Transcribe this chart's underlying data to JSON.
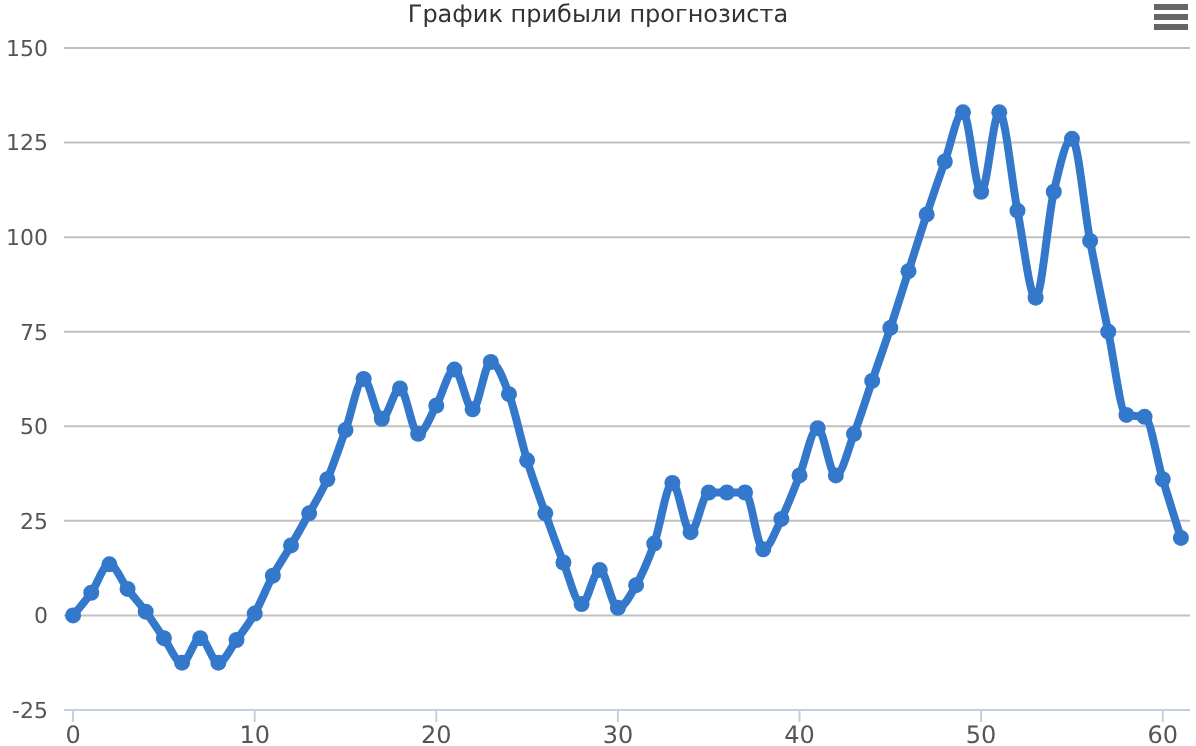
{
  "chart_data": {
    "type": "line",
    "title": "График прибыли прогнозиста",
    "x": [
      0,
      1,
      2,
      3,
      4,
      5,
      6,
      7,
      8,
      9,
      10,
      11,
      12,
      13,
      14,
      15,
      16,
      17,
      18,
      19,
      20,
      21,
      22,
      23,
      24,
      25,
      26,
      27,
      28,
      29,
      30,
      31,
      32,
      33,
      34,
      35,
      36,
      37,
      38,
      39,
      40,
      41,
      42,
      43,
      44,
      45,
      46,
      47,
      48,
      49,
      50,
      51,
      52,
      53,
      54,
      55,
      56,
      57,
      58,
      59,
      60,
      61
    ],
    "series": [
      {
        "color": "#3478cc",
        "values": [
          0,
          6,
          13.5,
          7,
          1,
          -6,
          -12.5,
          -6,
          -12.5,
          -6.5,
          0.5,
          10.5,
          18.5,
          27,
          36,
          49,
          62.5,
          52,
          60,
          48,
          55.5,
          65,
          54.5,
          67,
          58.5,
          41,
          27,
          14,
          3,
          12,
          2,
          8,
          19,
          35,
          22,
          32.5,
          32.5,
          32.5,
          17.5,
          25.5,
          37,
          49.5,
          37,
          48,
          62,
          76,
          91,
          106,
          120,
          133,
          112,
          133,
          107,
          84,
          112,
          126,
          99,
          75,
          53,
          52.5,
          36,
          20.5
        ]
      }
    ],
    "xlim": [
      -0.5,
      61.5
    ],
    "xticks": [
      0,
      10,
      20,
      30,
      40,
      50,
      60
    ],
    "ylim": [
      -25,
      150
    ],
    "yticks": [
      -25,
      0,
      25,
      50,
      75,
      100,
      125,
      150
    ],
    "grid": "y",
    "legend": false,
    "marker": "circle",
    "line_style": "solid"
  }
}
